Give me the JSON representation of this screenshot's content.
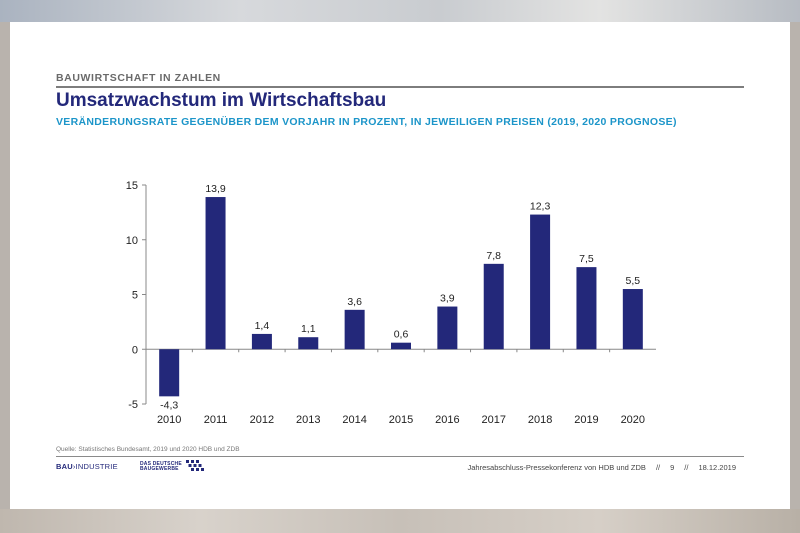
{
  "header": {
    "section": "BAUWIRTSCHAFT IN ZAHLEN",
    "title": "Umsatzwachstum im Wirtschaftsbau",
    "subtitle": "VERÄNDERUNGSRATE GEGENÜBER DEM VORJAHR IN PROZENT, IN JEWEILIGEN PREISEN (2019, 2020 PROGNOSE)"
  },
  "chart_data": {
    "type": "bar",
    "categories": [
      "2010",
      "2011",
      "2012",
      "2013",
      "2014",
      "2015",
      "2016",
      "2017",
      "2018",
      "2019",
      "2020"
    ],
    "values": [
      -4.3,
      13.9,
      1.4,
      1.1,
      3.6,
      0.6,
      3.9,
      7.8,
      12.3,
      7.5,
      5.5
    ],
    "value_labels": [
      "-4,3",
      "13,9",
      "1,4",
      "1,1",
      "3,6",
      "0,6",
      "3,9",
      "7,8",
      "12,3",
      "7,5",
      "5,5"
    ],
    "yticks": [
      -5,
      0,
      5,
      10,
      15
    ],
    "ylim": [
      -5,
      15
    ],
    "bar_color": "#23287a",
    "grid": false
  },
  "footer": {
    "source": "Quelle: Statistisches Bundesamt, 2019 und 2020 HDB und ZDB",
    "logo1_bold": "BAU",
    "logo1_rest": "INDUSTRIE",
    "logo2_line1": "DAS DEUTSCHE",
    "logo2_line2": "BAUGEWERBE",
    "event": "Jahresabschluss-Pressekonferenz von HDB und ZDB",
    "sep1": "//",
    "page": "9",
    "sep2": "//",
    "date": "18.12.2019"
  }
}
